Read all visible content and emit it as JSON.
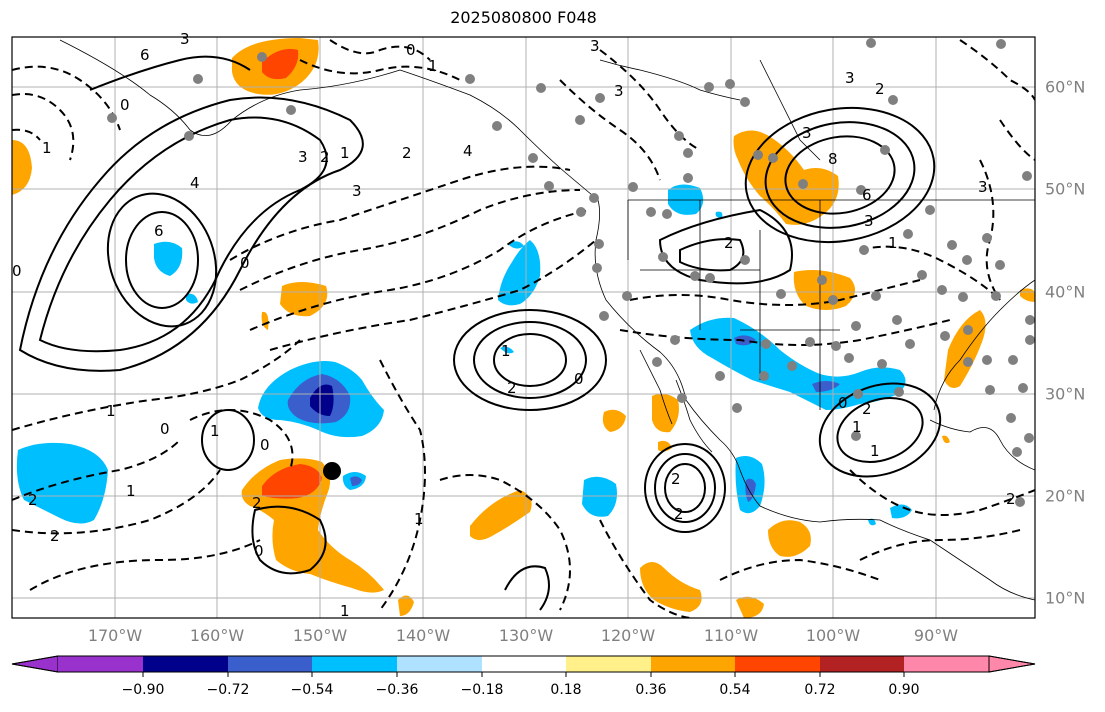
{
  "title": "2025080800 F048",
  "lon_labels": [
    "170°W",
    "160°W",
    "150°W",
    "140°W",
    "130°W",
    "120°W",
    "110°W",
    "100°W",
    "90°W"
  ],
  "lat_labels": [
    "60°N",
    "50°N",
    "40°N",
    "30°N",
    "20°N",
    "10°N"
  ],
  "colorbar": {
    "ticks": [
      "−0.90",
      "−0.72",
      "−0.54",
      "−0.36",
      "−0.18",
      "0.18",
      "0.36",
      "0.54",
      "0.72",
      "0.90"
    ],
    "colors": [
      "#9932cc",
      "#00008b",
      "#3a5fcd",
      "#00bfff",
      "#b0e2ff",
      "#ffffff",
      "#fff08a",
      "#ffa500",
      "#ff4500",
      "#b22222",
      "#ff88aa"
    ]
  },
  "contour_labels": [
    "3",
    "0",
    "3",
    "3",
    "2",
    "1",
    "6",
    "1",
    "3",
    "0",
    "4",
    "6",
    "0",
    "3",
    "2",
    "1",
    "3",
    "4",
    "2",
    "3",
    "0",
    "2",
    "1",
    "1",
    "0",
    "2",
    "2",
    "2",
    "1",
    "0",
    "1",
    "2",
    "3",
    "8",
    "6",
    "3",
    "0",
    "2",
    "1",
    "1",
    "2",
    "0",
    "2",
    "1",
    "1",
    "0",
    "2",
    "1"
  ],
  "colors": {
    "warm_moderate": "#ffa500",
    "warm_strong": "#ff4500",
    "cool_moderate": "#00bfff",
    "cool_strong": "#3a5fcd",
    "cool_extreme": "#00008b",
    "station_dot": "#808080",
    "grid": "#b0b0b0"
  }
}
